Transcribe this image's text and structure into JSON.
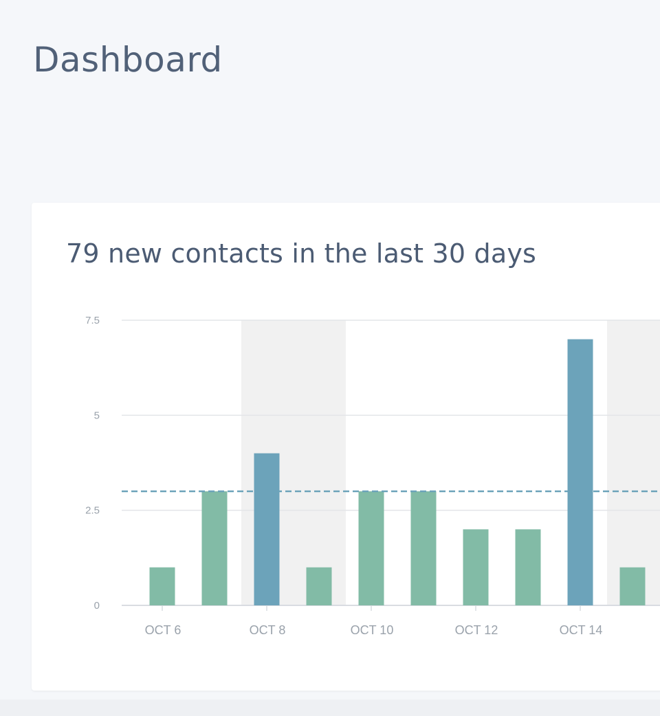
{
  "page": {
    "title": "Dashboard"
  },
  "card": {
    "title": "79 new contacts in the last 30 days"
  },
  "colors": {
    "bar_default": "#82bba6",
    "bar_highlight": "#6ca3ba",
    "reference_line": "#6ca3ba",
    "weekend_band": "#f1f1f1",
    "grid": "#e3e5e8",
    "tick_text": "#9aa2ab"
  },
  "chart_data": {
    "type": "bar",
    "x_tick_labels": [
      "OCT 6",
      "OCT 8",
      "OCT 10",
      "OCT 12",
      "OCT 14"
    ],
    "y_tick_labels": [
      "0",
      "2.5",
      "5",
      "7.5"
    ],
    "categories": [
      "Oct 6",
      "Oct 7",
      "Oct 8",
      "Oct 9",
      "Oct 10",
      "Oct 11",
      "Oct 12",
      "Oct 13",
      "Oct 14",
      "Oct 15"
    ],
    "values": [
      1,
      3,
      4,
      1,
      3,
      3,
      2,
      2,
      7,
      1
    ],
    "highlighted": [
      false,
      false,
      true,
      false,
      false,
      false,
      false,
      false,
      true,
      false
    ],
    "reference_value": 3,
    "weekend_bands": [
      [
        "Oct 8",
        "Oct 9"
      ],
      [
        "Oct 15",
        "Oct 16"
      ]
    ],
    "ylim": [
      0,
      7.5
    ],
    "grid": true
  }
}
